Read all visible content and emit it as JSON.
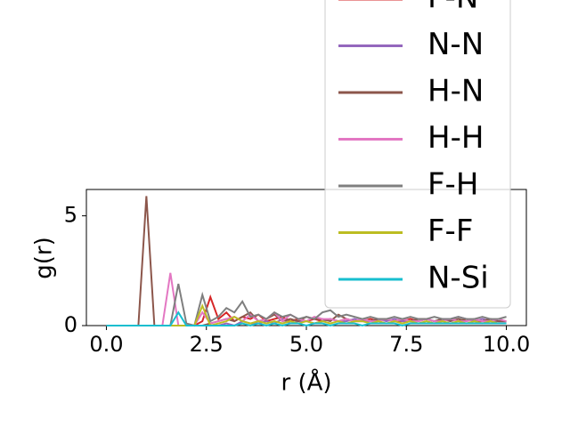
{
  "chart_data": {
    "type": "line",
    "x_label": "r (Å)",
    "y_label": "g(r)",
    "x": [
      0,
      0.2,
      0.4,
      0.6,
      0.8,
      1.0,
      1.2,
      1.4,
      1.6,
      1.8,
      2.0,
      2.2,
      2.4,
      2.6,
      2.8,
      3.0,
      3.2,
      3.4,
      3.6,
      3.8,
      4.0,
      4.2,
      4.4,
      4.6,
      4.8,
      5.0,
      5.2,
      5.4,
      5.6,
      5.8,
      6.0,
      6.2,
      6.4,
      6.6,
      6.8,
      7.0,
      7.2,
      7.4,
      7.6,
      7.8,
      8.0,
      8.2,
      8.4,
      8.6,
      8.8,
      9.0,
      9.2,
      9.4,
      9.6,
      9.8,
      10.0
    ],
    "series": [
      {
        "name": "F-N",
        "color": "#d62728",
        "values": [
          0,
          0,
          0,
          0,
          0,
          0,
          0,
          0,
          0,
          0,
          0,
          0,
          0.2,
          1.3,
          0.3,
          0.6,
          0.2,
          0.4,
          0.3,
          0.5,
          0.2,
          0.3,
          0.4,
          0.2,
          0.3,
          0.2,
          0.3,
          0.2,
          0.3,
          0.2,
          0.3,
          0.2,
          0.2,
          0.3,
          0.2,
          0.3,
          0.2,
          0.2,
          0.3,
          0.2,
          0.3,
          0.2,
          0.2,
          0.3,
          0.2,
          0.3,
          0.2,
          0.2,
          0.3,
          0.2,
          0.2
        ]
      },
      {
        "name": "N-N",
        "color": "#9467bd",
        "values": [
          0,
          0,
          0,
          0,
          0,
          0,
          0,
          0,
          0,
          0,
          0,
          0,
          0,
          0,
          0,
          0.1,
          0,
          0.2,
          0.1,
          0.1,
          0.2,
          0.1,
          0.3,
          0.1,
          0.2,
          0.2,
          0.1,
          0.2,
          0.3,
          0.2,
          0.2,
          0.3,
          0.2,
          0.2,
          0.3,
          0.2,
          0.3,
          0.2,
          0.2,
          0.3,
          0.3,
          0.2,
          0.3,
          0.3,
          0.4,
          0.3,
          0.2,
          0.3,
          0.2,
          0.2,
          0.2
        ]
      },
      {
        "name": "H-N",
        "color": "#8c564b",
        "values": [
          0,
          0,
          0,
          0,
          0,
          5.9,
          0,
          0,
          0,
          0,
          0,
          0,
          0,
          0.1,
          0.2,
          0.3,
          0.2,
          0.4,
          0.6,
          0.2,
          0.3,
          0.5,
          0.2,
          0.3,
          0.2,
          0.4,
          0.3,
          0.3,
          0.2,
          0.5,
          0.3,
          0.2,
          0.3,
          0.2,
          0.3,
          0.3,
          0.2,
          0.3,
          0.2,
          0.3,
          0.3,
          0.2,
          0.3,
          0.2,
          0.3,
          0.2,
          0.3,
          0.2,
          0.3,
          0.2,
          0.2
        ]
      },
      {
        "name": "H-H",
        "color": "#e377c2",
        "values": [
          0,
          0,
          0,
          0,
          0,
          0,
          0,
          0,
          2.4,
          0,
          0,
          0,
          0.6,
          0.1,
          0.2,
          0.3,
          0.4,
          0.2,
          0.5,
          0.2,
          0.3,
          0.6,
          0.2,
          0.5,
          0.3,
          0.2,
          0.4,
          0.3,
          0.3,
          0.2,
          0.3,
          0.2,
          0.3,
          0.2,
          0.2,
          0.3,
          0.2,
          0.3,
          0.2,
          0.2,
          0.3,
          0.2,
          0.2,
          0.3,
          0.2,
          0.2,
          0.3,
          0.2,
          0.2,
          0.3,
          0.2
        ]
      },
      {
        "name": "F-H",
        "color": "#7f7f7f",
        "values": [
          0,
          0,
          0,
          0,
          0,
          0,
          0,
          0,
          0,
          1.9,
          0.1,
          0,
          1.4,
          0.2,
          0.4,
          0.8,
          0.6,
          1.1,
          0.4,
          0.5,
          0.3,
          0.6,
          0.4,
          0.5,
          0.3,
          0.4,
          0.3,
          0.6,
          0.7,
          0.4,
          0.5,
          0.4,
          0.3,
          0.4,
          0.3,
          0.3,
          0.4,
          0.3,
          0.4,
          0.3,
          0.3,
          0.4,
          0.3,
          0.3,
          0.4,
          0.3,
          0.3,
          0.4,
          0.3,
          0.3,
          0.4
        ]
      },
      {
        "name": "F-F",
        "color": "#bcbd22",
        "values": [
          0,
          0,
          0,
          0,
          0,
          0,
          0,
          0,
          0,
          0,
          0,
          0,
          0.9,
          0,
          0.1,
          0.2,
          0.4,
          0.2,
          0.1,
          0.2,
          0.1,
          0.2,
          0.1,
          0.2,
          0.1,
          0.2,
          0.1,
          0.2,
          0.1,
          0.2,
          0.1,
          0.2,
          0.2,
          0.1,
          0.2,
          0.1,
          0.2,
          0.1,
          0.2,
          0.1,
          0.2,
          0.1,
          0.2,
          0.1,
          0.2,
          0.1,
          0.2,
          0.1,
          0.2,
          0.1,
          0.1
        ]
      },
      {
        "name": "N-Si",
        "color": "#17becf",
        "values": [
          0,
          0,
          0,
          0,
          0,
          0,
          0,
          0,
          0,
          0.6,
          0,
          0,
          0,
          0,
          0,
          0,
          0,
          0.1,
          0,
          0.1,
          0,
          0.1,
          0,
          0.1,
          0.1,
          0,
          0.1,
          0.1,
          0,
          0.1,
          0.1,
          0.1,
          0,
          0.1,
          0.1,
          0.1,
          0.1,
          0,
          0.1,
          0.1,
          0.1,
          0.1,
          0.1,
          0.1,
          0.1,
          0.1,
          0.1,
          0.1,
          0.1,
          0.1,
          0.1
        ]
      }
    ],
    "xlim": [
      -0.5,
      10.5
    ],
    "xticks": [
      {
        "value": 0,
        "label": "0.0"
      },
      2.5,
      {
        "value": 5,
        "label": "5.0"
      },
      7.5,
      {
        "value": 10,
        "label": "10.0"
      }
    ],
    "ylim": [
      0,
      6.2
    ],
    "yticks": [
      0,
      5
    ],
    "legend": "upper right"
  }
}
